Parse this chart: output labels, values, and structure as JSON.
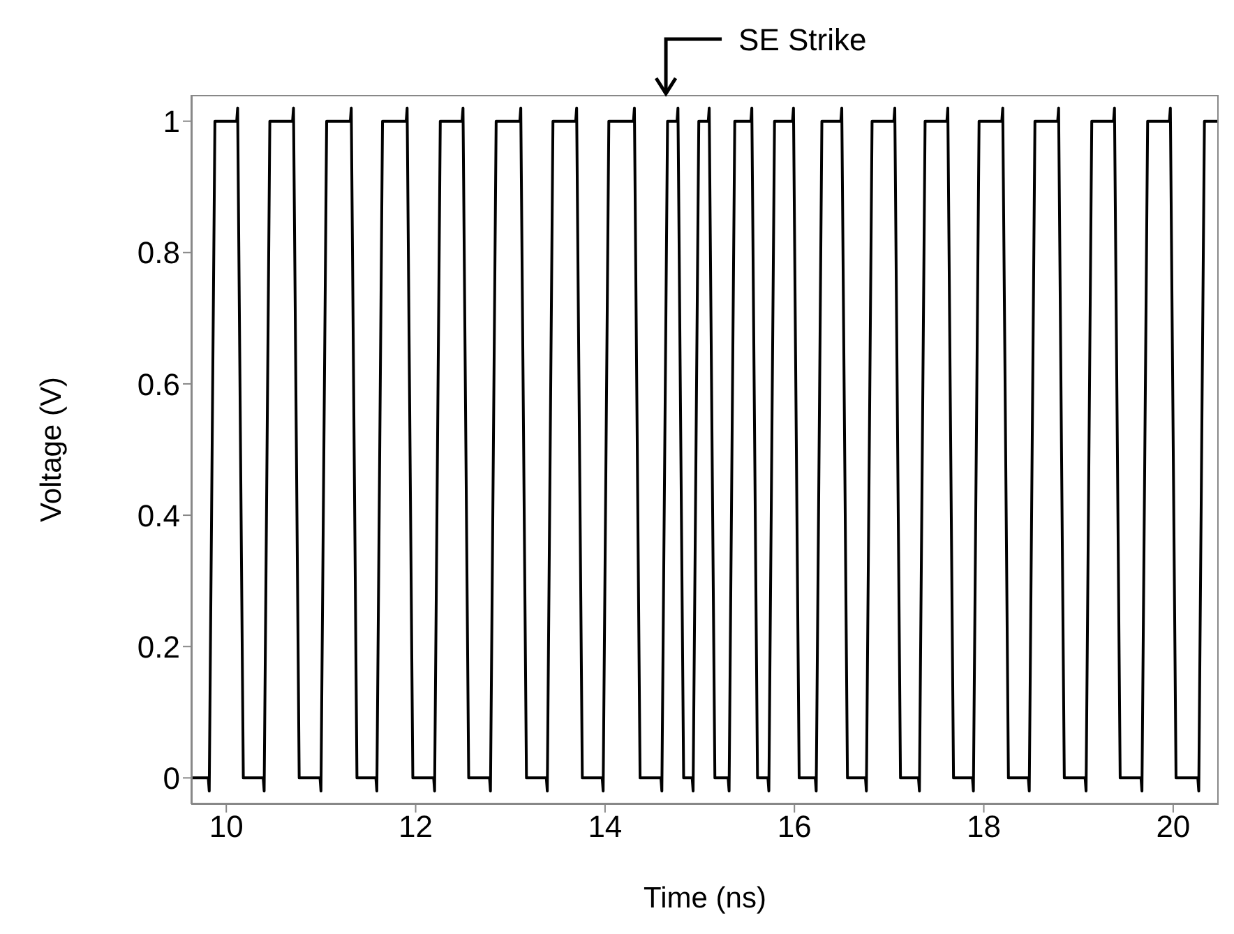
{
  "chart_data": {
    "type": "line",
    "xlabel": "Time (ns)",
    "ylabel": "Voltage (V)",
    "annotations": [
      "SE Strike"
    ],
    "xlim": [
      9.63,
      20.48
    ],
    "ylim": [
      -0.04,
      1.04
    ],
    "xticks": [
      10,
      12,
      14,
      16,
      18,
      20
    ],
    "yticks": [
      0,
      0.2,
      0.4,
      0.6,
      0.8,
      1
    ],
    "grid": false,
    "legend": false,
    "marker": "none",
    "line_style": "solid",
    "series": [
      {
        "color": "#000000",
        "x": [
          9.63,
          9.81,
          9.82,
          9.88,
          10.11,
          10.12,
          10.18,
          10.39,
          10.4,
          10.46,
          10.7,
          10.71,
          10.77,
          10.99,
          11.0,
          11.06,
          11.31,
          11.32,
          11.38,
          11.58,
          11.59,
          11.65,
          11.9,
          11.91,
          11.97,
          12.19,
          12.2,
          12.26,
          12.49,
          12.5,
          12.56,
          12.78,
          12.79,
          12.85,
          13.1,
          13.11,
          13.17,
          13.38,
          13.39,
          13.45,
          13.69,
          13.7,
          13.76,
          13.97,
          13.98,
          14.04,
          14.3,
          14.31,
          14.37,
          14.59,
          14.6,
          14.66,
          14.76,
          14.77,
          14.83,
          14.92,
          14.93,
          14.99,
          15.09,
          15.1,
          15.16,
          15.3,
          15.31,
          15.37,
          15.54,
          15.55,
          15.61,
          15.72,
          15.73,
          15.79,
          15.98,
          15.99,
          16.05,
          16.22,
          16.23,
          16.29,
          16.49,
          16.5,
          16.56,
          16.75,
          16.76,
          16.82,
          17.05,
          17.06,
          17.12,
          17.31,
          17.32,
          17.38,
          17.61,
          17.62,
          17.68,
          17.88,
          17.89,
          17.95,
          18.19,
          18.2,
          18.26,
          18.47,
          18.48,
          18.54,
          18.78,
          18.79,
          18.85,
          19.07,
          19.08,
          19.14,
          19.37,
          19.38,
          19.44,
          19.66,
          19.67,
          19.73,
          19.96,
          19.97,
          20.03,
          20.26,
          20.27,
          20.33,
          20.48
        ],
        "values": [
          0,
          0,
          -0.02,
          1,
          1,
          1.02,
          0,
          0,
          -0.02,
          1,
          1,
          1.02,
          0,
          0,
          -0.02,
          1,
          1,
          1.02,
          0,
          0,
          -0.02,
          1,
          1,
          1.02,
          0,
          0,
          -0.02,
          1,
          1,
          1.02,
          0,
          0,
          -0.02,
          1,
          1,
          1.02,
          0,
          0,
          -0.02,
          1,
          1,
          1.02,
          0,
          0,
          -0.02,
          1,
          1,
          1.02,
          0,
          0,
          -0.02,
          1,
          1,
          1.02,
          0,
          0,
          -0.02,
          1,
          1,
          1.02,
          0,
          0,
          -0.02,
          1,
          1,
          1.02,
          0,
          0,
          -0.02,
          1,
          1,
          1.02,
          0,
          0,
          -0.02,
          1,
          1,
          1.02,
          0,
          0,
          -0.02,
          1,
          1,
          1.02,
          0,
          0,
          -0.02,
          1,
          1,
          1.02,
          0,
          0,
          -0.02,
          1,
          1,
          1.02,
          0,
          0,
          -0.02,
          1,
          1,
          1.02,
          0,
          0,
          -0.02,
          1,
          1,
          1.02,
          0,
          0,
          -0.02,
          1,
          1,
          1.02,
          0,
          0,
          -0.02,
          1,
          1
        ]
      }
    ]
  }
}
